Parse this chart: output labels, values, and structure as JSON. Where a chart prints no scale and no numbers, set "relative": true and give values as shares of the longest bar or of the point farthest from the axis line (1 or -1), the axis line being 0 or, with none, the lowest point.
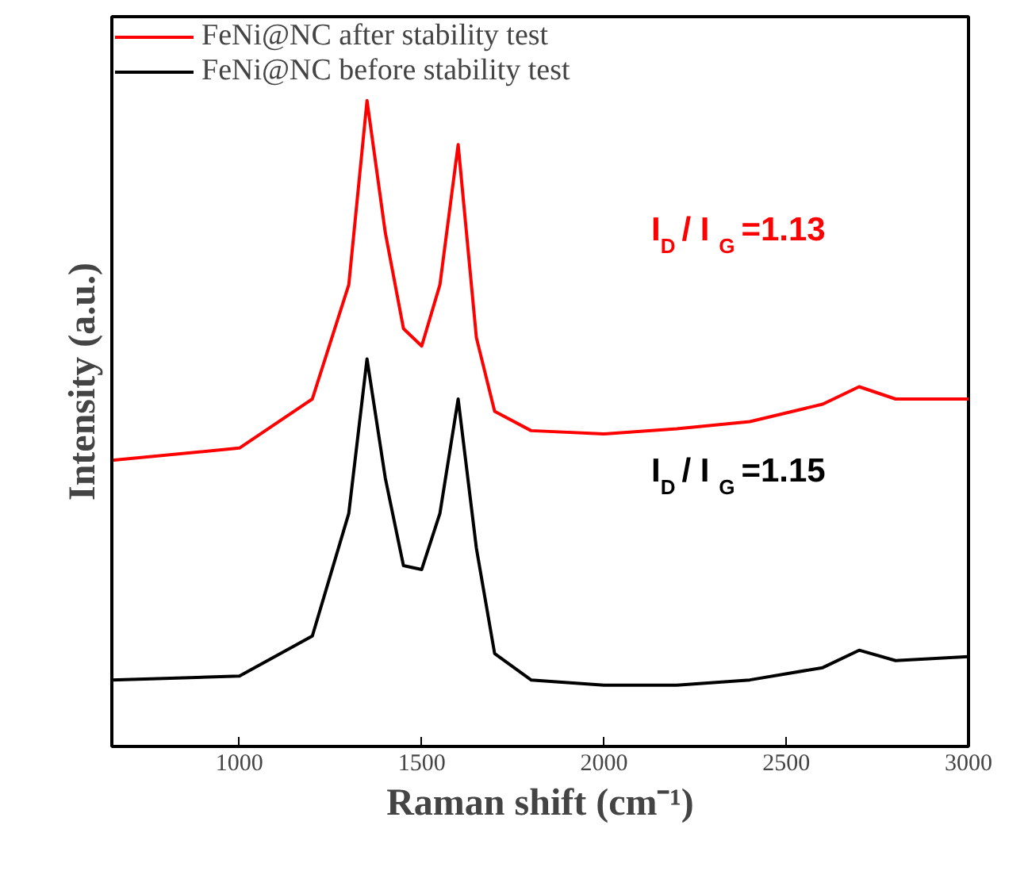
{
  "chart_data": {
    "type": "line",
    "relative": true,
    "xlabel": "Raman shift (cm⁻¹)",
    "ylabel": "Intensity (a.u.)",
    "xlim": [
      650,
      3000
    ],
    "xticks": [
      1000,
      1500,
      2000,
      2500,
      3000
    ],
    "tick_labels": "x",
    "legend": "top left",
    "grid": false,
    "series": [
      {
        "name": "FeNi@NC after stability test",
        "color": "#ff0000",
        "x": [
          650,
          1000,
          1200,
          1300,
          1350,
          1400,
          1450,
          1500,
          1550,
          1600,
          1650,
          1700,
          1800,
          2000,
          2200,
          2400,
          2600,
          2700,
          2800,
          3000
        ],
        "values": [
          0.443,
          0.462,
          0.538,
          0.715,
          1.0,
          0.796,
          0.647,
          0.62,
          0.715,
          0.932,
          0.633,
          0.519,
          0.489,
          0.484,
          0.492,
          0.503,
          0.53,
          0.557,
          0.538,
          0.538
        ]
      },
      {
        "name": "FeNi@NC before stability test",
        "color": "#000000",
        "x": [
          650,
          1000,
          1200,
          1300,
          1350,
          1400,
          1450,
          1500,
          1550,
          1600,
          1650,
          1700,
          1800,
          2000,
          2200,
          2400,
          2600,
          2700,
          2800,
          3000
        ],
        "values": [
          0.103,
          0.109,
          0.171,
          0.361,
          0.6,
          0.416,
          0.28,
          0.274,
          0.361,
          0.538,
          0.307,
          0.144,
          0.103,
          0.095,
          0.095,
          0.103,
          0.122,
          0.149,
          0.133,
          0.139
        ]
      }
    ],
    "annotations": [
      "I$_{D}$ / I$_{G}$=1.13",
      "I$_{D}$ / I$_{G}$=1.15"
    ]
  }
}
